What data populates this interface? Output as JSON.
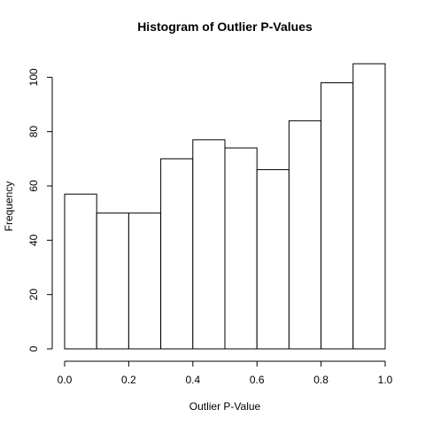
{
  "chart_data": {
    "type": "bar",
    "title": "Histogram of Outlier P-Values",
    "xlabel": "Outlier P-Value",
    "ylabel": "Frequency",
    "bin_edges": [
      0.0,
      0.1,
      0.2,
      0.3,
      0.4,
      0.5,
      0.6,
      0.7,
      0.8,
      0.9,
      1.0
    ],
    "values": [
      57,
      50,
      50,
      70,
      77,
      74,
      66,
      84,
      98,
      105
    ],
    "xlim": [
      0.0,
      1.0
    ],
    "ylim": [
      0,
      105
    ],
    "x_ticks": [
      "0.0",
      "0.2",
      "0.4",
      "0.6",
      "0.8",
      "1.0"
    ],
    "x_tick_values": [
      0.0,
      0.2,
      0.4,
      0.6,
      0.8,
      1.0
    ],
    "y_ticks": [
      "0",
      "20",
      "40",
      "60",
      "80",
      "100"
    ],
    "y_tick_values": [
      0,
      20,
      40,
      60,
      80,
      100
    ],
    "grid": false,
    "bar_fill": "#ffffff",
    "bar_stroke": "#000000"
  }
}
